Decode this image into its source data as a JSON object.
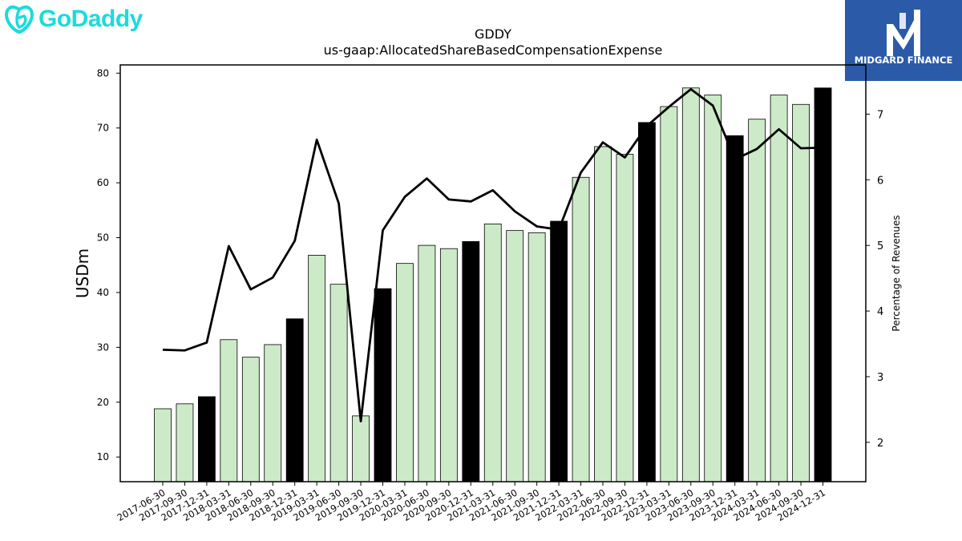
{
  "branding": {
    "left_logo_text": "GoDaddy",
    "left_logo_color": "#1bdbdb",
    "right_logo_text": "MIDGARD FINANCE",
    "right_logo_bg": "#2b5aa8"
  },
  "chart_data": {
    "type": "bar",
    "title": "GDDY",
    "subtitle": "us-gaap:AllocatedShareBasedCompensationExpense",
    "ylabel": "USDm",
    "y2label": "Percentage of Revenues",
    "ylim": [
      5.5,
      81.5
    ],
    "y2lim": [
      1.4,
      7.75
    ],
    "yticks": [
      10,
      20,
      30,
      40,
      50,
      60,
      70,
      80
    ],
    "y2ticks": [
      2,
      3,
      4,
      5,
      6,
      7
    ],
    "categories": [
      "2017-06-30",
      "2017-09-30",
      "2017-12-31",
      "2018-03-31",
      "2018-06-30",
      "2018-09-30",
      "2018-12-31",
      "2019-03-31",
      "2019-06-30",
      "2019-09-30",
      "2019-12-31",
      "2020-03-31",
      "2020-06-30",
      "2020-09-30",
      "2020-12-31",
      "2021-03-31",
      "2021-06-30",
      "2021-09-30",
      "2021-12-31",
      "2022-03-31",
      "2022-06-30",
      "2022-09-30",
      "2022-12-31",
      "2023-03-31",
      "2023-06-30",
      "2023-09-30",
      "2023-12-31",
      "2024-03-31",
      "2024-06-30",
      "2024-09-30",
      "2024-12-31"
    ],
    "series": [
      {
        "type": "bar",
        "axis": "left",
        "values": [
          18.8,
          19.7,
          21.0,
          31.4,
          28.2,
          30.5,
          35.2,
          46.8,
          41.5,
          17.5,
          40.7,
          45.3,
          48.6,
          48.0,
          49.3,
          52.5,
          51.3,
          50.9,
          53.0,
          61.0,
          66.6,
          65.2,
          71.0,
          73.9,
          77.3,
          76.0,
          68.6,
          71.6,
          76.0,
          74.3,
          77.3
        ],
        "highlight": [
          false,
          false,
          true,
          false,
          false,
          false,
          true,
          false,
          false,
          false,
          true,
          false,
          false,
          false,
          true,
          false,
          false,
          false,
          true,
          false,
          false,
          false,
          true,
          false,
          false,
          false,
          true,
          false,
          false,
          false,
          true
        ],
        "color": "#cdeac8",
        "highlight_color": "#000000"
      },
      {
        "type": "line",
        "axis": "right",
        "values": [
          3.41,
          3.4,
          3.52,
          4.99,
          4.33,
          4.51,
          5.07,
          6.61,
          5.64,
          2.32,
          5.23,
          5.74,
          6.02,
          5.7,
          5.67,
          5.84,
          5.52,
          5.29,
          5.24,
          6.11,
          6.57,
          6.34,
          6.82,
          7.11,
          7.38,
          7.13,
          6.31,
          6.47,
          6.77,
          6.48,
          6.49
        ],
        "color": "#000000"
      }
    ],
    "grid": false,
    "legend": "none"
  }
}
